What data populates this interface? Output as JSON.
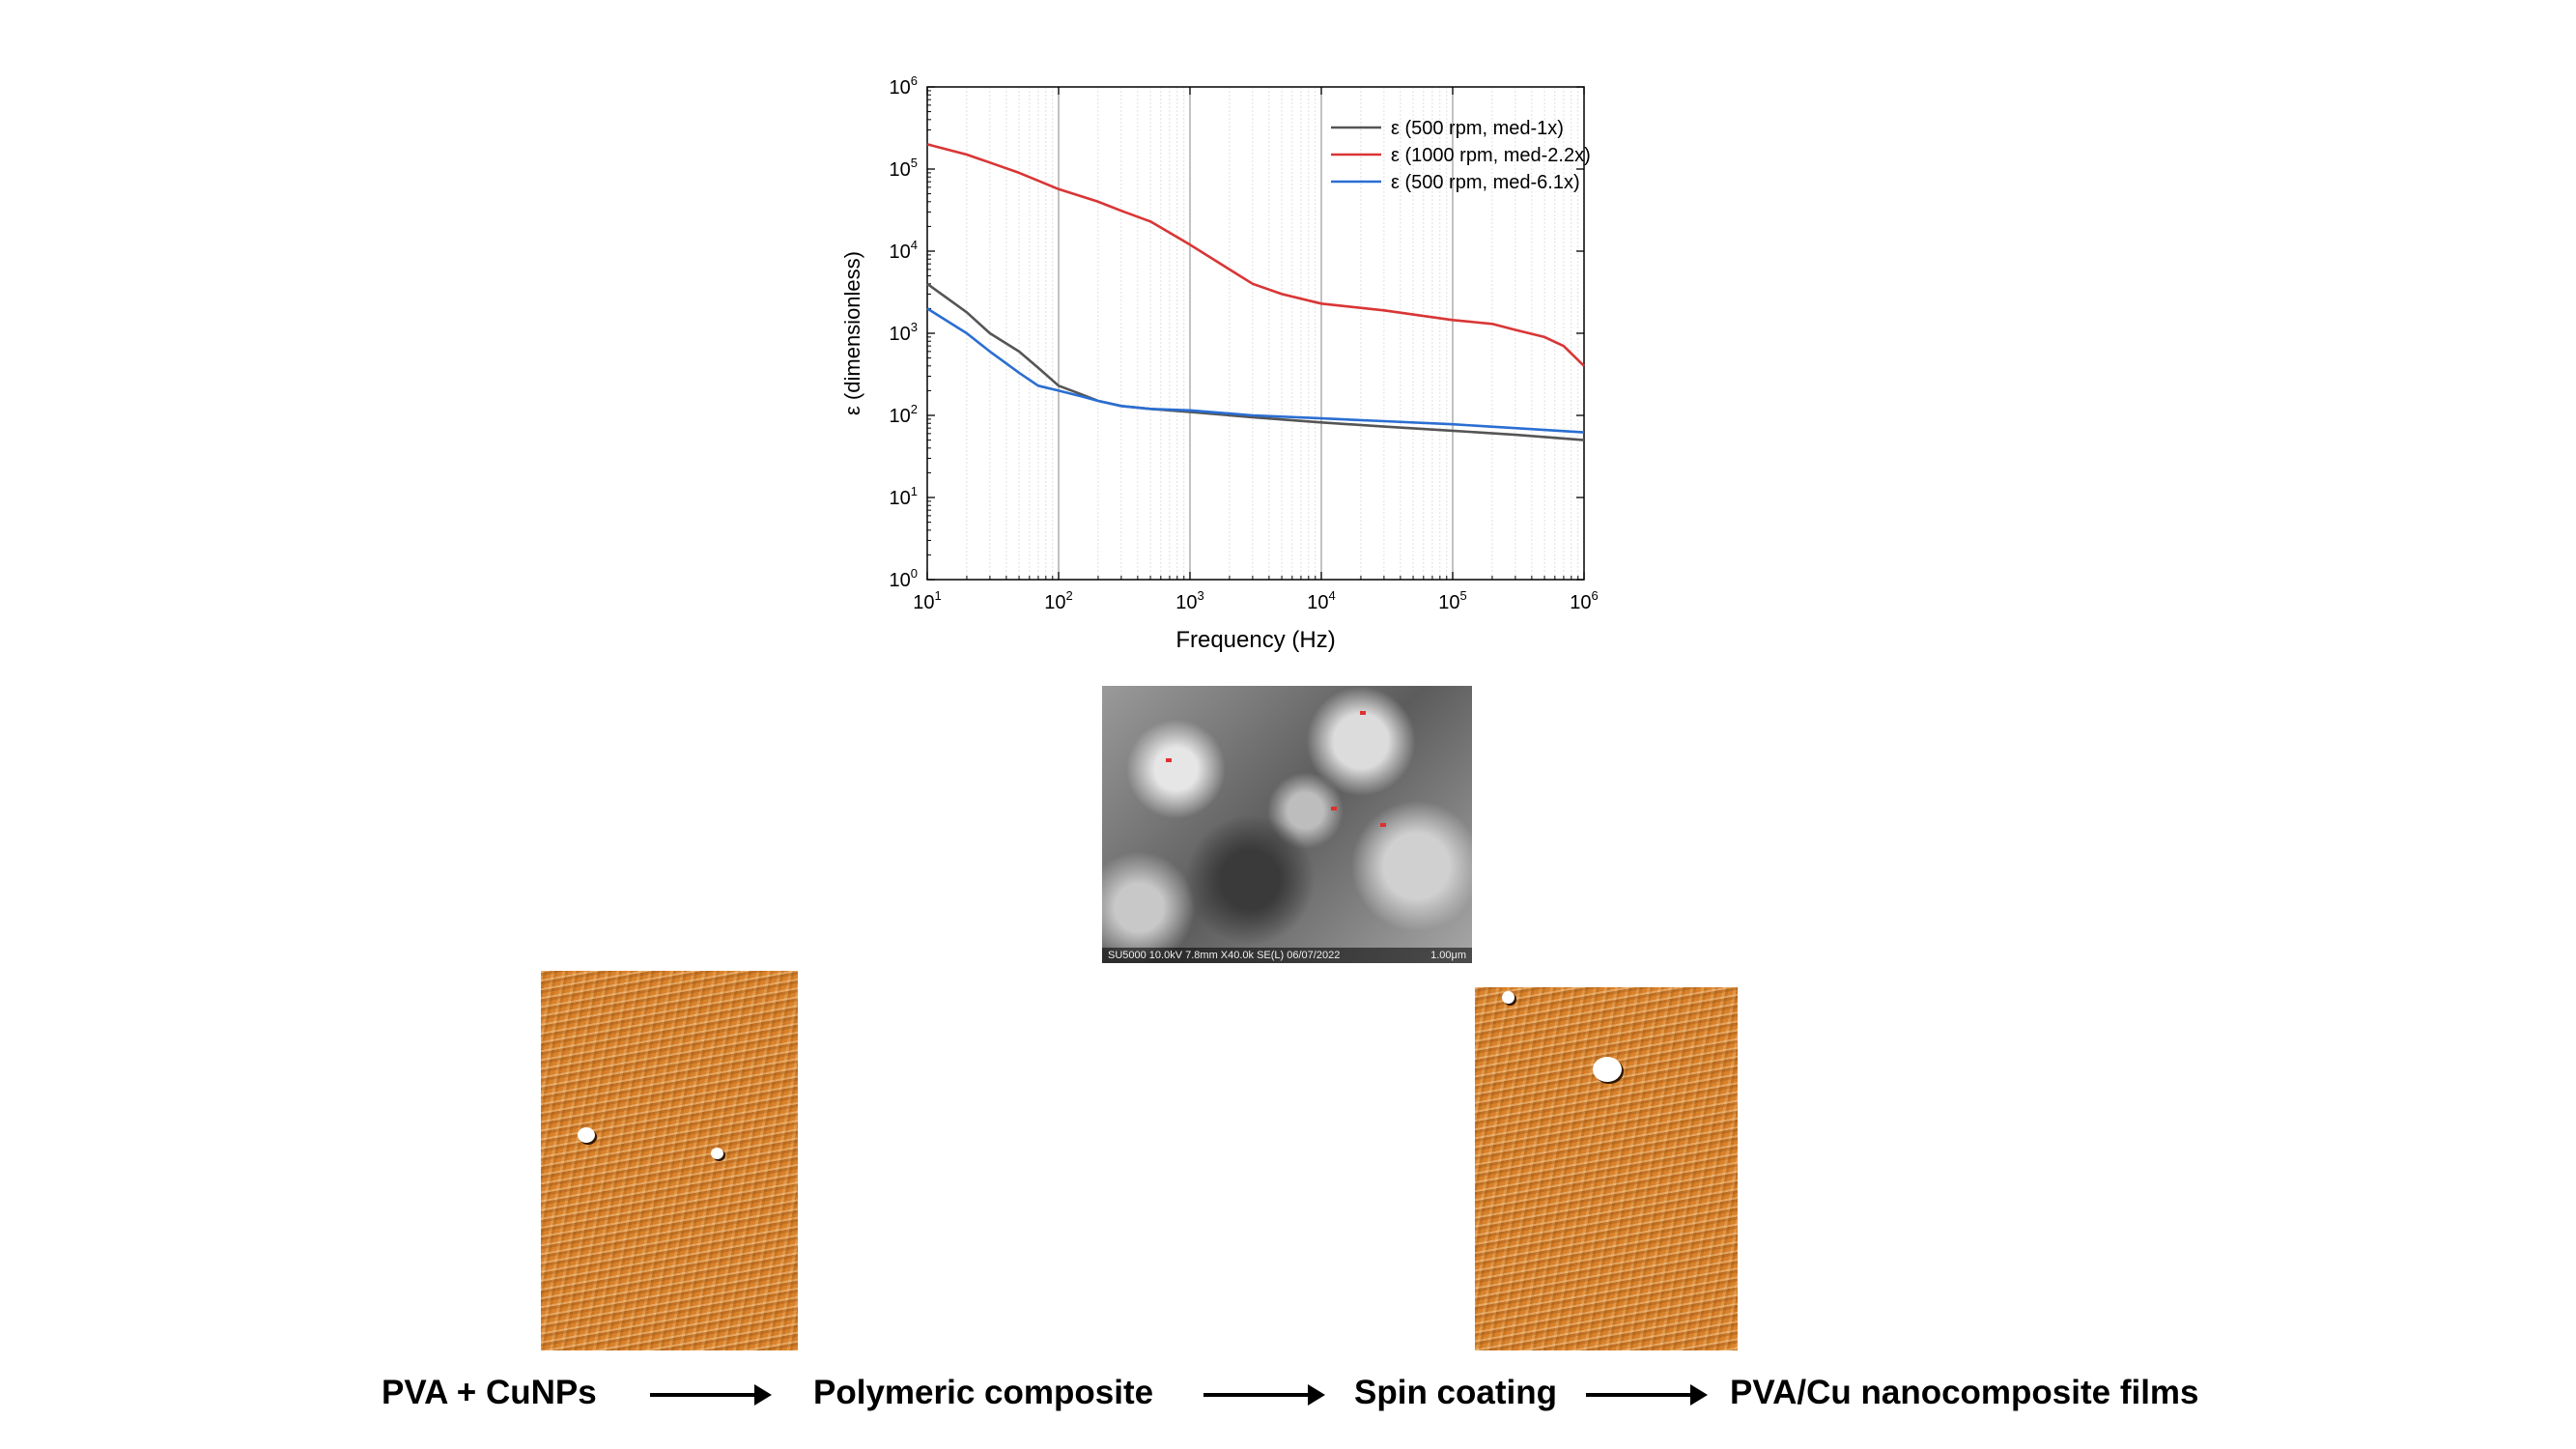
{
  "chart_data": {
    "type": "line",
    "xlabel": "Frequency (Hz)",
    "ylabel": "ε (dimensionless)",
    "xscale": "log",
    "yscale": "log",
    "xlim": [
      10,
      1000000
    ],
    "ylim": [
      1,
      1000000
    ],
    "x_ticks": [
      10,
      100,
      1000,
      10000,
      100000,
      1000000
    ],
    "y_ticks": [
      1,
      10,
      100,
      1000,
      10000,
      100000,
      1000000
    ],
    "grid": "vertical",
    "legend_position": "top-right",
    "series": [
      {
        "name": "ε (500 rpm, med-1x)",
        "color": "#555555",
        "x": [
          10,
          20,
          30,
          50,
          70,
          100,
          150,
          200,
          300,
          500,
          1000,
          3000,
          10000,
          30000,
          100000,
          300000,
          1000000
        ],
        "y": [
          4000,
          1800,
          1000,
          600,
          380,
          230,
          180,
          150,
          130,
          120,
          110,
          95,
          82,
          73,
          65,
          58,
          50
        ]
      },
      {
        "name": "ε (1000 rpm, med-2.2x)",
        "color": "#d93535",
        "x": [
          10,
          20,
          30,
          50,
          70,
          100,
          200,
          300,
          500,
          1000,
          2000,
          3000,
          5000,
          10000,
          30000,
          100000,
          200000,
          300000,
          500000,
          700000,
          1000000
        ],
        "y": [
          200000,
          150000,
          120000,
          90000,
          72000,
          57000,
          40000,
          31000,
          23000,
          12000,
          6000,
          4000,
          3000,
          2300,
          1900,
          1450,
          1300,
          1100,
          900,
          700,
          400
        ]
      },
      {
        "name": "ε (500 rpm, med-6.1x)",
        "color": "#2a6ed2",
        "x": [
          10,
          20,
          30,
          50,
          70,
          100,
          150,
          200,
          300,
          500,
          1000,
          3000,
          10000,
          30000,
          100000,
          300000,
          1000000
        ],
        "y": [
          2000,
          1000,
          600,
          330,
          230,
          200,
          170,
          150,
          130,
          120,
          115,
          100,
          92,
          85,
          78,
          70,
          62
        ]
      }
    ]
  },
  "sem_image": {
    "footer_left": "SU5000 10.0kV 7.8mm X40.0k SE(L) 06/07/2022",
    "footer_right": "1.00μm"
  },
  "flow": {
    "step1": "PVA + CuNPs",
    "step2": "Polymeric composite",
    "step3": "Spin coating",
    "step4": "PVA/Cu nanocomposite films"
  }
}
